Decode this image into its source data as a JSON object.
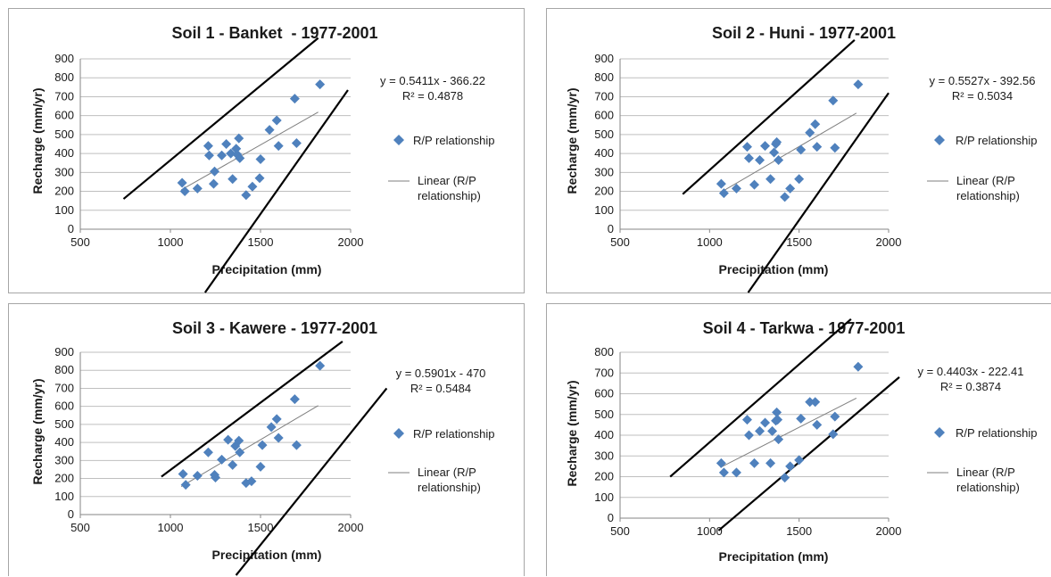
{
  "colors": {
    "marker": "#4f81bd",
    "trendline": "#7f7f7f",
    "band": "#000000",
    "gridline": "#bfbfbf"
  },
  "legend": {
    "scatter_label": "R/P relationship",
    "linear_label_line1": "Linear (R/P",
    "linear_label_line2": "relationship)"
  },
  "chart_data": [
    {
      "type": "scatter",
      "title": "Soil 1 - Banket  - 1977-2001",
      "xlabel": "Precipitation (mm)",
      "ylabel": "Recharge (mm/yr)",
      "xlim": [
        500,
        2000
      ],
      "ylim": [
        0,
        900
      ],
      "xticks": [
        "500",
        "1000",
        "1500",
        "2000"
      ],
      "yticks": [
        "0",
        "100",
        "200",
        "300",
        "400",
        "500",
        "600",
        "700",
        "800",
        "900"
      ],
      "equation": "y = 0.5411x - 366.22",
      "r2": "R² = 0.4878",
      "trend": {
        "slope": 0.5411,
        "intercept": -366.22,
        "x_range": [
          1060,
          1820
        ]
      },
      "bands": [
        [
          [
            740,
            160
          ],
          [
            1820,
            1010
          ]
        ],
        [
          [
            1040,
            -540
          ],
          [
            1985,
            735
          ]
        ]
      ],
      "series": [
        {
          "x": [
            1065,
            1080,
            1150,
            1210,
            1215,
            1240,
            1245,
            1285,
            1310,
            1335,
            1345,
            1365,
            1370,
            1380,
            1385,
            1420,
            1455,
            1495,
            1500,
            1550,
            1590,
            1600,
            1690,
            1700,
            1830
          ],
          "y": [
            245,
            200,
            215,
            440,
            390,
            240,
            305,
            390,
            450,
            400,
            265,
            425,
            395,
            480,
            375,
            180,
            225,
            270,
            370,
            525,
            575,
            440,
            690,
            455,
            765
          ]
        }
      ]
    },
    {
      "type": "scatter",
      "title": "Soil 2 - Huni - 1977-2001",
      "xlabel": "Precipitation (mm)",
      "ylabel": "Recharge (mm/yr)",
      "xlim": [
        500,
        2000
      ],
      "ylim": [
        0,
        900
      ],
      "xticks": [
        "500",
        "1000",
        "1500",
        "2000"
      ],
      "yticks": [
        "0",
        "100",
        "200",
        "300",
        "400",
        "500",
        "600",
        "700",
        "800",
        "900"
      ],
      "equation": "y = 0.5527x - 392.56",
      "r2": "R² = 0.5034",
      "trend": {
        "slope": 0.5527,
        "intercept": -392.56,
        "x_range": [
          1060,
          1820
        ]
      },
      "bands": [
        [
          [
            850,
            185
          ],
          [
            1810,
            1000
          ]
        ],
        [
          [
            1070,
            -530
          ],
          [
            2000,
            720
          ]
        ]
      ],
      "series": [
        {
          "x": [
            1065,
            1080,
            1150,
            1210,
            1220,
            1250,
            1280,
            1310,
            1340,
            1360,
            1370,
            1375,
            1385,
            1420,
            1450,
            1500,
            1510,
            1560,
            1590,
            1600,
            1690,
            1700,
            1830
          ],
          "y": [
            240,
            190,
            215,
            435,
            375,
            235,
            365,
            440,
            265,
            405,
            450,
            460,
            365,
            170,
            215,
            265,
            420,
            510,
            555,
            435,
            680,
            430,
            765
          ]
        }
      ]
    },
    {
      "type": "scatter",
      "title": "Soil 3 - Kawere - 1977-2001",
      "xlabel": "Precipitation (mm)",
      "ylabel": "Recharge (mm/yr)",
      "xlim": [
        500,
        2000
      ],
      "ylim": [
        0,
        900
      ],
      "xticks": [
        "500",
        "1000",
        "1500",
        "2000"
      ],
      "yticks": [
        "0",
        "100",
        "200",
        "300",
        "400",
        "500",
        "600",
        "700",
        "800",
        "900"
      ],
      "equation": "y = 0.5901x - 470",
      "r2": "R² = 0.5484",
      "trend": {
        "slope": 0.5901,
        "intercept": -470,
        "x_range": [
          1060,
          1820
        ]
      },
      "bands": [
        [
          [
            950,
            210
          ],
          [
            1955,
            960
          ]
        ],
        [
          [
            1200,
            -540
          ],
          [
            2200,
            700
          ]
        ]
      ],
      "series": [
        {
          "x": [
            1070,
            1085,
            1150,
            1210,
            1245,
            1250,
            1285,
            1320,
            1345,
            1360,
            1380,
            1385,
            1420,
            1450,
            1500,
            1510,
            1560,
            1590,
            1600,
            1690,
            1700,
            1830
          ],
          "y": [
            225,
            165,
            215,
            345,
            220,
            205,
            305,
            415,
            275,
            380,
            410,
            345,
            175,
            185,
            265,
            385,
            485,
            530,
            425,
            640,
            385,
            825
          ]
        }
      ]
    },
    {
      "type": "scatter",
      "title": "Soil 4 - Tarkwa - 1977-2001",
      "xlabel": "Precipitation (mm)",
      "ylabel": "Recharge (mm/yr)",
      "xlim": [
        500,
        2000
      ],
      "ylim": [
        0,
        800
      ],
      "xticks": [
        "500",
        "1000",
        "1500",
        "2000"
      ],
      "yticks": [
        "0",
        "100",
        "200",
        "300",
        "400",
        "500",
        "600",
        "700",
        "800"
      ],
      "equation": "y = 0.4403x - 222.41",
      "r2": "R² = 0.3874",
      "trend": {
        "slope": 0.4403,
        "intercept": -222.41,
        "x_range": [
          1060,
          1820
        ]
      },
      "bands": [
        [
          [
            780,
            200
          ],
          [
            1790,
            960
          ]
        ],
        [
          [
            1050,
            -60
          ],
          [
            2060,
            680
          ]
        ]
      ],
      "series": [
        {
          "x": [
            1065,
            1080,
            1150,
            1210,
            1220,
            1250,
            1280,
            1310,
            1340,
            1350,
            1370,
            1375,
            1380,
            1385,
            1420,
            1450,
            1500,
            1510,
            1560,
            1590,
            1600,
            1690,
            1700,
            1830
          ],
          "y": [
            265,
            220,
            220,
            475,
            400,
            265,
            420,
            460,
            265,
            420,
            470,
            510,
            475,
            380,
            195,
            250,
            280,
            480,
            560,
            560,
            450,
            405,
            490,
            730
          ]
        }
      ]
    }
  ]
}
